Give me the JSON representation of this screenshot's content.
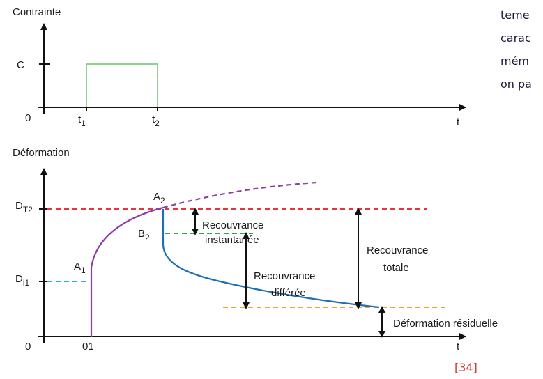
{
  "colors": {
    "axis": "#111111",
    "pulse": "#8fd18f",
    "creep": "#8b3fa3",
    "recovery": "#1f6fb6",
    "red_dashed": "#e8343b",
    "green_dashed": "#2aa84a",
    "cyan_dashed": "#22b5d6",
    "orange_dashed": "#f2a030",
    "ref": "#d23a2a"
  },
  "top": {
    "y_title": "Contrainte",
    "c_label": "C",
    "origin": "0",
    "t1_main": "t",
    "t1_sub": "1",
    "t2_main": "t",
    "t2_sub": "2",
    "t_axis": "t"
  },
  "bottom": {
    "y_title": "Déformation",
    "dt2_main": "D",
    "dt2_sub": "T2",
    "di1_main": "D",
    "di1_sub": "i1",
    "origin": "0",
    "x_origin_label": "01",
    "t_axis": "t",
    "a1_main": "A",
    "a1_sub": "1",
    "a2_main": "A",
    "a2_sub": "2",
    "b2_main": "B",
    "b2_sub": "2",
    "recouvrance_instantanee": [
      "Recouvrance",
      "instantanée"
    ],
    "recouvrance_differee": [
      "Recouvrance",
      "différée"
    ],
    "recouvrance_totale": [
      "Recouvrance",
      "totale"
    ],
    "deformation_residuelle": "Déformation résiduelle"
  },
  "side_text": [
    "teme",
    "carac",
    "mém",
    "on pa"
  ],
  "reference": "[34]"
}
